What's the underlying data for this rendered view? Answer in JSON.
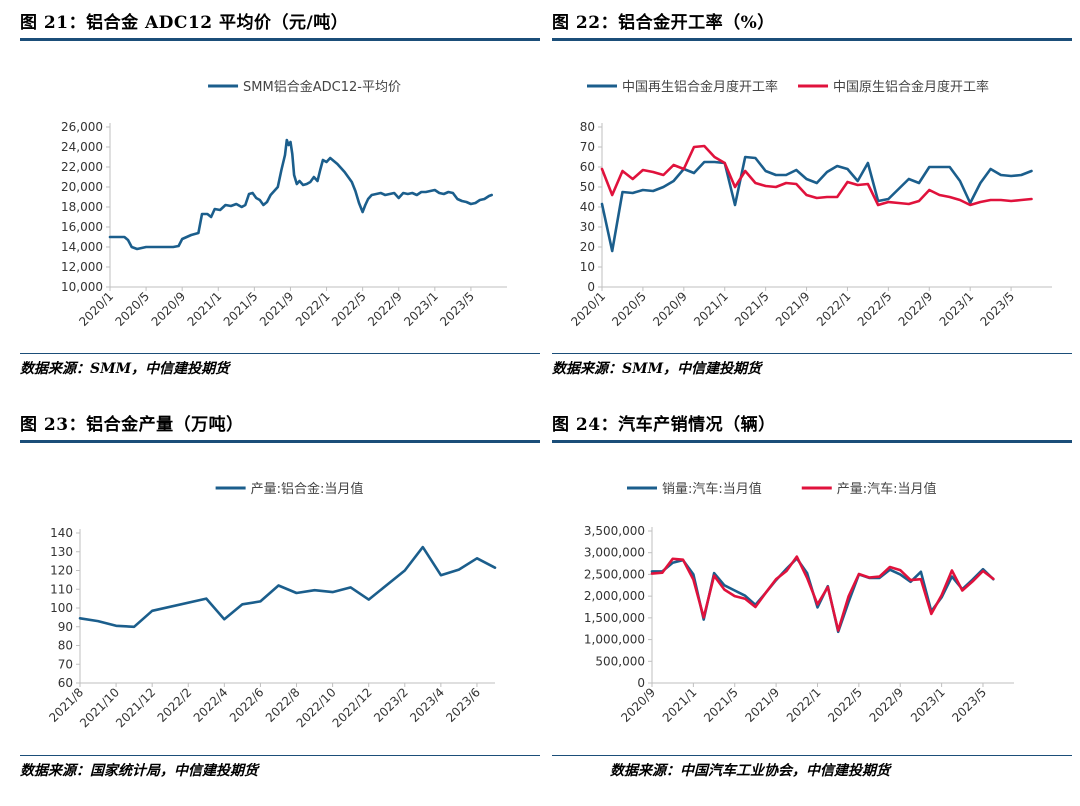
{
  "panels": [
    {
      "title": "图 21：铝合金 ADC12 平均价（元/吨）",
      "source": "数据来源：SMM，中信建投期货"
    },
    {
      "title": "图 22：铝合金开工率（%）",
      "source": "数据来源：SMM，中信建投期货"
    },
    {
      "title": "图 23：铝合金产量（万吨）",
      "source": "数据来源：国家统计局，中信建投期货"
    },
    {
      "title": "图 24：汽车产销情况（辆）",
      "source": "数据来源：中国汽车工业协会，中信建投期货"
    }
  ],
  "colors": {
    "blue": "#1b5e8c",
    "red": "#e0123c",
    "axis": "#bfbfbf",
    "rule": "#1b4e79"
  },
  "chart_data": [
    {
      "type": "line",
      "x_format": "month_index_from_2020_01",
      "x_ticks": [
        {
          "v": 0,
          "label": "2020/1"
        },
        {
          "v": 4,
          "label": "2020/5"
        },
        {
          "v": 8,
          "label": "2020/9"
        },
        {
          "v": 12,
          "label": "2021/1"
        },
        {
          "v": 16,
          "label": "2021/5"
        },
        {
          "v": 20,
          "label": "2021/9"
        },
        {
          "v": 24,
          "label": "2022/1"
        },
        {
          "v": 28,
          "label": "2022/5"
        },
        {
          "v": 32,
          "label": "2022/9"
        },
        {
          "v": 36,
          "label": "2023/1"
        },
        {
          "v": 40,
          "label": "2023/5"
        }
      ],
      "xlim": [
        0,
        44
      ],
      "ylim": [
        10000,
        26000
      ],
      "y_ticks": [
        10000,
        12000,
        14000,
        16000,
        18000,
        20000,
        22000,
        24000,
        26000
      ],
      "y_labels": [
        "10,000",
        "12,000",
        "14,000",
        "16,000",
        "18,000",
        "20,000",
        "22,000",
        "24,000",
        "26,000"
      ],
      "legend_position": "top-center",
      "series": [
        {
          "name": "SMM铝合金ADC12-平均价",
          "color": "#1b5e8c",
          "points": [
            [
              0,
              15000
            ],
            [
              1.6,
              15000
            ],
            [
              2.0,
              14700
            ],
            [
              2.4,
              14000
            ],
            [
              3.0,
              13800
            ],
            [
              4.0,
              14000
            ],
            [
              5.0,
              14000
            ],
            [
              6.0,
              14000
            ],
            [
              7.0,
              14000
            ],
            [
              7.6,
              14100
            ],
            [
              8.0,
              14800
            ],
            [
              9.0,
              15200
            ],
            [
              9.8,
              15400
            ],
            [
              10.2,
              17300
            ],
            [
              10.8,
              17300
            ],
            [
              11.2,
              17000
            ],
            [
              11.6,
              17800
            ],
            [
              12.2,
              17700
            ],
            [
              12.8,
              18200
            ],
            [
              13.4,
              18100
            ],
            [
              14.0,
              18300
            ],
            [
              14.6,
              18000
            ],
            [
              15.0,
              18200
            ],
            [
              15.4,
              19300
            ],
            [
              15.8,
              19400
            ],
            [
              16.2,
              18900
            ],
            [
              16.6,
              18700
            ],
            [
              17.0,
              18200
            ],
            [
              17.4,
              18500
            ],
            [
              17.8,
              19200
            ],
            [
              18.2,
              19600
            ],
            [
              18.6,
              20000
            ],
            [
              19.0,
              21700
            ],
            [
              19.4,
              23200
            ],
            [
              19.6,
              24700
            ],
            [
              19.8,
              24200
            ],
            [
              20.0,
              24500
            ],
            [
              20.2,
              23300
            ],
            [
              20.4,
              21200
            ],
            [
              20.7,
              20300
            ],
            [
              21.0,
              20600
            ],
            [
              21.4,
              20200
            ],
            [
              21.8,
              20300
            ],
            [
              22.2,
              20500
            ],
            [
              22.6,
              21000
            ],
            [
              23.0,
              20600
            ],
            [
              23.3,
              21700
            ],
            [
              23.6,
              22700
            ],
            [
              24.0,
              22500
            ],
            [
              24.4,
              22900
            ],
            [
              24.8,
              22600
            ],
            [
              25.2,
              22300
            ],
            [
              25.6,
              21900
            ],
            [
              26.0,
              21500
            ],
            [
              26.4,
              21000
            ],
            [
              26.8,
              20500
            ],
            [
              27.2,
              19600
            ],
            [
              27.6,
              18400
            ],
            [
              28.0,
              17500
            ],
            [
              28.3,
              18200
            ],
            [
              28.6,
              18800
            ],
            [
              29.0,
              19200
            ],
            [
              29.5,
              19300
            ],
            [
              30.0,
              19400
            ],
            [
              30.5,
              19200
            ],
            [
              31.0,
              19300
            ],
            [
              31.5,
              19400
            ],
            [
              32.0,
              18900
            ],
            [
              32.5,
              19400
            ],
            [
              33.0,
              19300
            ],
            [
              33.5,
              19400
            ],
            [
              34.0,
              19200
            ],
            [
              34.5,
              19500
            ],
            [
              35.0,
              19500
            ],
            [
              35.5,
              19600
            ],
            [
              36.0,
              19700
            ],
            [
              36.5,
              19400
            ],
            [
              37.0,
              19300
            ],
            [
              37.5,
              19500
            ],
            [
              38.0,
              19400
            ],
            [
              38.5,
              18800
            ],
            [
              39.0,
              18600
            ],
            [
              39.5,
              18500
            ],
            [
              40.0,
              18300
            ],
            [
              40.5,
              18400
            ],
            [
              41.0,
              18700
            ],
            [
              41.5,
              18800
            ],
            [
              42.0,
              19100
            ],
            [
              42.3,
              19200
            ]
          ]
        }
      ]
    },
    {
      "type": "line",
      "x_format": "month_index_from_2020_01",
      "x_ticks": [
        {
          "v": 0,
          "label": "2020/1"
        },
        {
          "v": 4,
          "label": "2020/5"
        },
        {
          "v": 8,
          "label": "2020/9"
        },
        {
          "v": 12,
          "label": "2021/1"
        },
        {
          "v": 16,
          "label": "2021/5"
        },
        {
          "v": 20,
          "label": "2021/9"
        },
        {
          "v": 24,
          "label": "2022/1"
        },
        {
          "v": 28,
          "label": "2022/5"
        },
        {
          "v": 32,
          "label": "2022/9"
        },
        {
          "v": 36,
          "label": "2023/1"
        },
        {
          "v": 40,
          "label": "2023/5"
        }
      ],
      "xlim": [
        0,
        44
      ],
      "ylim": [
        0,
        80
      ],
      "y_ticks": [
        0,
        10,
        20,
        30,
        40,
        50,
        60,
        70,
        80
      ],
      "y_labels": [
        "0",
        "10",
        "20",
        "30",
        "40",
        "50",
        "60",
        "70",
        "80"
      ],
      "legend_position": "top",
      "series": [
        {
          "name": "中国再生铝合金月度开工率",
          "color": "#1b5e8c",
          "values": [
            41.5,
            18,
            47.5,
            47,
            48.5,
            48,
            50,
            53,
            59,
            57,
            62.5,
            62.5,
            62,
            41,
            65,
            64.5,
            58,
            56,
            56,
            58.5,
            54,
            52,
            57.5,
            60.5,
            59,
            53,
            62,
            43,
            44,
            49,
            54,
            52,
            60,
            60,
            60,
            53,
            42,
            52,
            59,
            56,
            55.5,
            56,
            58
          ]
        },
        {
          "name": "中国原生铝合金月度开工率",
          "color": "#e0123c",
          "values": [
            59,
            46,
            58,
            54,
            58.5,
            57.5,
            56,
            61,
            59,
            70,
            70.5,
            65,
            62,
            50,
            58,
            52,
            50.5,
            50,
            52,
            51.5,
            46,
            44.5,
            45,
            45,
            52.5,
            51,
            51.5,
            41,
            42.5,
            42,
            41.5,
            43,
            48.5,
            46,
            45,
            43.5,
            41,
            42.5,
            43.5,
            43.5,
            43,
            43.5,
            44
          ]
        }
      ]
    },
    {
      "type": "line",
      "x_format": "month_index_from_2021_08",
      "x_ticks": [
        {
          "v": 0,
          "label": "2021/8"
        },
        {
          "v": 2,
          "label": "2021/10"
        },
        {
          "v": 4,
          "label": "2021/12"
        },
        {
          "v": 6,
          "label": "2022/2"
        },
        {
          "v": 8,
          "label": "2022/4"
        },
        {
          "v": 10,
          "label": "2022/6"
        },
        {
          "v": 12,
          "label": "2022/8"
        },
        {
          "v": 14,
          "label": "2022/10"
        },
        {
          "v": 16,
          "label": "2022/12"
        },
        {
          "v": 18,
          "label": "2023/2"
        },
        {
          "v": 20,
          "label": "2023/4"
        },
        {
          "v": 22,
          "label": "2023/6"
        }
      ],
      "xlim": [
        0,
        23
      ],
      "ylim": [
        60,
        140
      ],
      "y_ticks": [
        60,
        70,
        80,
        90,
        100,
        110,
        120,
        130,
        140
      ],
      "y_labels": [
        "60",
        "70",
        "80",
        "90",
        "100",
        "110",
        "120",
        "130",
        "140"
      ],
      "legend_position": "top-center",
      "series": [
        {
          "name": "产量:铝合金:当月值",
          "color": "#1b5e8c",
          "points": [
            [
              0,
              94.5
            ],
            [
              1,
              93
            ],
            [
              2,
              90.5
            ],
            [
              3,
              90
            ],
            [
              4,
              98.5
            ],
            [
              7,
              105
            ],
            [
              8,
              94
            ],
            [
              9,
              102
            ],
            [
              10,
              103.5
            ],
            [
              11,
              112
            ],
            [
              12,
              108
            ],
            [
              13,
              109.5
            ],
            [
              14,
              108.5
            ],
            [
              15,
              111
            ],
            [
              16,
              104.5
            ],
            [
              18,
              120
            ],
            [
              19,
              132.5
            ],
            [
              20,
              117.5
            ],
            [
              21,
              120.5
            ],
            [
              22,
              126.5
            ],
            [
              23,
              121.5
            ]
          ]
        }
      ]
    },
    {
      "type": "line",
      "x_format": "month_index_from_2020_09",
      "x_ticks": [
        {
          "v": 0,
          "label": "2020/9"
        },
        {
          "v": 4,
          "label": "2021/1"
        },
        {
          "v": 8,
          "label": "2021/5"
        },
        {
          "v": 12,
          "label": "2021/9"
        },
        {
          "v": 16,
          "label": "2022/1"
        },
        {
          "v": 20,
          "label": "2022/5"
        },
        {
          "v": 24,
          "label": "2022/9"
        },
        {
          "v": 28,
          "label": "2023/1"
        },
        {
          "v": 32,
          "label": "2023/5"
        }
      ],
      "xlim": [
        0,
        35
      ],
      "ylim": [
        0,
        3500000
      ],
      "y_ticks": [
        0,
        500000,
        1000000,
        1500000,
        2000000,
        2500000,
        3000000,
        3500000
      ],
      "y_labels": [
        "0",
        "500,000",
        "1,000,000",
        "1,500,000",
        "2,000,000",
        "2,500,000",
        "3,000,000",
        "3,500,000"
      ],
      "legend_position": "top",
      "series": [
        {
          "name": "销量:汽车:当月值",
          "color": "#1b5e8c",
          "values": [
            2570000,
            2570000,
            2770000,
            2830000,
            2500000,
            1460000,
            2530000,
            2250000,
            2130000,
            2010000,
            1800000,
            2080000,
            2370000,
            2630000,
            2870000,
            2530000,
            1740000,
            2230000,
            1180000,
            1860000,
            2500000,
            2420000,
            2420000,
            2610000,
            2500000,
            2330000,
            2560000,
            1650000,
            1970000,
            2450000,
            2160000,
            2380000,
            2620000,
            2390000
          ]
        },
        {
          "name": "产量:汽车:当月值",
          "color": "#e0123c",
          "values": [
            2520000,
            2540000,
            2860000,
            2840000,
            2380000,
            1510000,
            2470000,
            2150000,
            2000000,
            1940000,
            1750000,
            2080000,
            2390000,
            2580000,
            2910000,
            2420000,
            1810000,
            2210000,
            1210000,
            1990000,
            2510000,
            2430000,
            2450000,
            2670000,
            2600000,
            2370000,
            2390000,
            1590000,
            2020000,
            2590000,
            2130000,
            2340000,
            2580000,
            2400000
          ]
        }
      ]
    }
  ]
}
